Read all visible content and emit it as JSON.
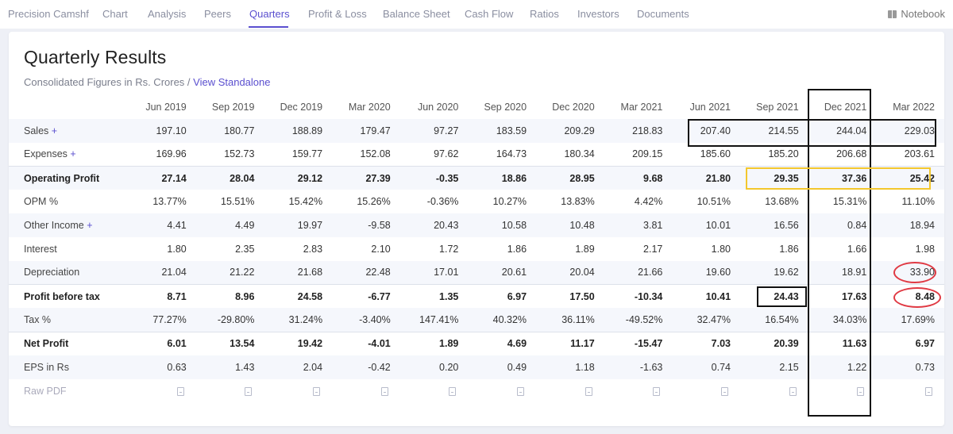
{
  "nav": {
    "brand": "Precision Camshf",
    "tabs": [
      "Chart",
      "Analysis",
      "Peers",
      "Quarters",
      "Profit & Loss",
      "Balance Sheet",
      "Cash Flow",
      "Ratios",
      "Investors",
      "Documents"
    ],
    "active_tab": "Quarters",
    "notebook": "Notebook"
  },
  "section": {
    "title": "Quarterly Results",
    "subtitle_prefix": "Consolidated Figures in Rs. Crores / ",
    "subtitle_link": "View Standalone"
  },
  "table": {
    "columns": [
      "Jun 2019",
      "Sep 2019",
      "Dec 2019",
      "Mar 2020",
      "Jun 2020",
      "Sep 2020",
      "Dec 2020",
      "Mar 2021",
      "Jun 2021",
      "Sep 2021",
      "Dec 2021",
      "Mar 2022"
    ],
    "rows": [
      {
        "label": "Sales",
        "expand": "+",
        "values": [
          "197.10",
          "180.77",
          "188.89",
          "179.47",
          "97.27",
          "183.59",
          "209.29",
          "218.83",
          "207.40",
          "214.55",
          "244.04",
          "229.03"
        ]
      },
      {
        "label": "Expenses",
        "expand": "+",
        "values": [
          "169.96",
          "152.73",
          "159.77",
          "152.08",
          "97.62",
          "164.73",
          "180.34",
          "209.15",
          "185.60",
          "185.20",
          "206.68",
          "203.61"
        ]
      },
      {
        "label": "Operating Profit",
        "values": [
          "27.14",
          "28.04",
          "29.12",
          "27.39",
          "-0.35",
          "18.86",
          "28.95",
          "9.68",
          "21.80",
          "29.35",
          "37.36",
          "25.42"
        ]
      },
      {
        "label": "OPM %",
        "values": [
          "13.77%",
          "15.51%",
          "15.42%",
          "15.26%",
          "-0.36%",
          "10.27%",
          "13.83%",
          "4.42%",
          "10.51%",
          "13.68%",
          "15.31%",
          "11.10%"
        ]
      },
      {
        "label": "Other Income",
        "expand": "+",
        "values": [
          "4.41",
          "4.49",
          "19.97",
          "-9.58",
          "20.43",
          "10.58",
          "10.48",
          "3.81",
          "10.01",
          "16.56",
          "0.84",
          "18.94"
        ]
      },
      {
        "label": "Interest",
        "values": [
          "1.80",
          "2.35",
          "2.83",
          "2.10",
          "1.72",
          "1.86",
          "1.89",
          "2.17",
          "1.80",
          "1.86",
          "1.66",
          "1.98"
        ]
      },
      {
        "label": "Depreciation",
        "values": [
          "21.04",
          "21.22",
          "21.68",
          "22.48",
          "17.01",
          "20.61",
          "20.04",
          "21.66",
          "19.60",
          "19.62",
          "18.91",
          "33.90"
        ]
      },
      {
        "label": "Profit before tax",
        "values": [
          "8.71",
          "8.96",
          "24.58",
          "-6.77",
          "1.35",
          "6.97",
          "17.50",
          "-10.34",
          "10.41",
          "24.43",
          "17.63",
          "8.48"
        ]
      },
      {
        "label": "Tax %",
        "values": [
          "77.27%",
          "-29.80%",
          "31.24%",
          "-3.40%",
          "147.41%",
          "40.32%",
          "36.11%",
          "-49.52%",
          "32.47%",
          "16.54%",
          "34.03%",
          "17.69%"
        ]
      },
      {
        "label": "Net Profit",
        "values": [
          "6.01",
          "13.54",
          "19.42",
          "-4.01",
          "1.89",
          "4.69",
          "11.17",
          "-15.47",
          "7.03",
          "20.39",
          "11.63",
          "6.97"
        ]
      },
      {
        "label": "EPS in Rs",
        "values": [
          "0.63",
          "1.43",
          "2.04",
          "-0.42",
          "0.20",
          "0.49",
          "1.18",
          "-1.63",
          "0.74",
          "2.15",
          "1.22",
          "0.73"
        ]
      }
    ],
    "pdf_row_label": "Raw PDF"
  },
  "colors": {
    "accent": "#5a4fcf",
    "annotation_black": "#111111",
    "annotation_yellow": "#f3c72d",
    "annotation_red": "#e03a44"
  }
}
